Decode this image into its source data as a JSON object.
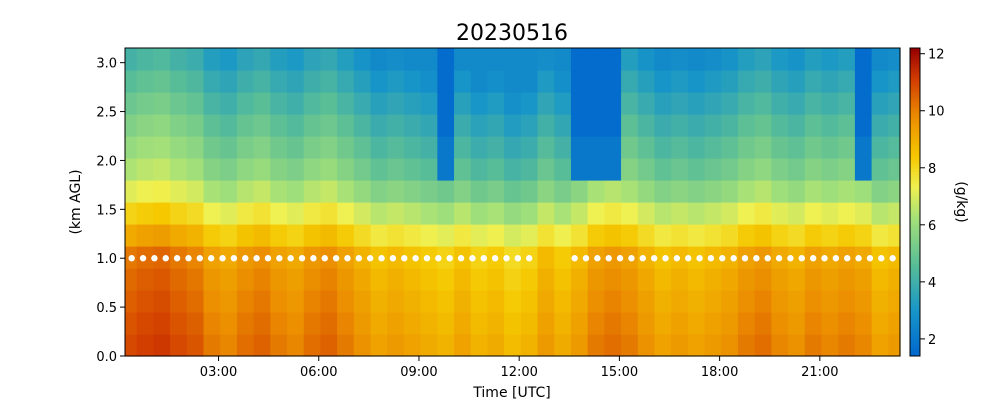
{
  "chart_data": {
    "type": "heatmap",
    "title": "20230516",
    "xlabel": "Time [UTC]",
    "ylabel": "(km AGL)",
    "colorbar_label": "(g/kg)",
    "xlim_hours": [
      0.2,
      23.4
    ],
    "ylim": [
      0.0,
      3.15
    ],
    "x_ticks": [
      {
        "value": 3,
        "label": "03:00"
      },
      {
        "value": 6,
        "label": "06:00"
      },
      {
        "value": 9,
        "label": "09:00"
      },
      {
        "value": 12,
        "label": "12:00"
      },
      {
        "value": 15,
        "label": "15:00"
      },
      {
        "value": 18,
        "label": "18:00"
      },
      {
        "value": 21,
        "label": "21:00"
      }
    ],
    "y_ticks": [
      {
        "value": 0.0,
        "label": "0.0"
      },
      {
        "value": 0.5,
        "label": "0.5"
      },
      {
        "value": 1.0,
        "label": "1.0"
      },
      {
        "value": 1.5,
        "label": "1.5"
      },
      {
        "value": 2.0,
        "label": "2.0"
      },
      {
        "value": 2.5,
        "label": "2.5"
      },
      {
        "value": 3.0,
        "label": "3.0"
      }
    ],
    "colorbar": {
      "vmin": 1.4,
      "vmax": 12.2,
      "ticks": [
        {
          "value": 2,
          "label": "2"
        },
        {
          "value": 4,
          "label": "4"
        },
        {
          "value": 6,
          "label": "6"
        },
        {
          "value": 8,
          "label": "8"
        },
        {
          "value": 10,
          "label": "10"
        },
        {
          "value": 12,
          "label": "12"
        }
      ],
      "colormap": "jet-like"
    },
    "time_hours": [
      0.3,
      0.8,
      1.3,
      1.8,
      2.3,
      2.8,
      3.3,
      3.8,
      4.3,
      4.8,
      5.3,
      5.8,
      6.3,
      6.8,
      7.3,
      7.8,
      8.3,
      8.8,
      9.3,
      9.8,
      10.3,
      10.8,
      11.3,
      11.8,
      12.3,
      12.8,
      13.3,
      13.8,
      14.3,
      14.8,
      15.3,
      15.8,
      16.3,
      16.8,
      17.3,
      17.8,
      18.3,
      18.8,
      19.3,
      19.8,
      20.3,
      20.8,
      21.3,
      21.8,
      22.3,
      22.8,
      23.3
    ],
    "surface_mixing_ratio_gkg": [
      11.0,
      11.2,
      11.3,
      11.0,
      10.8,
      10.2,
      10.0,
      10.4,
      10.6,
      10.2,
      10.0,
      10.4,
      10.6,
      10.2,
      9.8,
      9.4,
      9.6,
      9.4,
      9.2,
      9.0,
      9.4,
      9.0,
      9.2,
      8.8,
      9.0,
      9.6,
      9.2,
      9.6,
      10.2,
      10.4,
      10.2,
      9.8,
      9.4,
      9.6,
      9.4,
      9.6,
      9.8,
      10.2,
      10.4,
      10.0,
      9.8,
      10.2,
      10.0,
      10.2,
      10.0,
      9.4,
      9.6
    ],
    "dry_column_times": [
      10.0,
      14.0,
      14.5,
      15.0,
      22.3
    ],
    "marker_line": {
      "height_km": 1.0,
      "gap_hours": [
        12.5,
        13.5
      ]
    }
  }
}
